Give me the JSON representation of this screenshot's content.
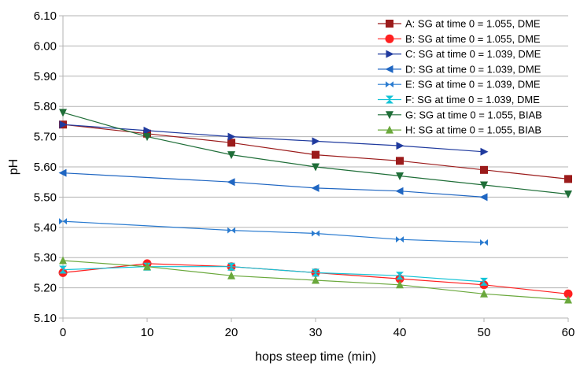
{
  "chart_data": {
    "type": "line",
    "title": "",
    "xlabel": "hops steep time (min)",
    "ylabel": "pH",
    "xlim": [
      0,
      60
    ],
    "ylim": [
      5.1,
      6.1
    ],
    "x_ticks": [
      "0",
      "10",
      "20",
      "30",
      "40",
      "50",
      "60"
    ],
    "y_ticks": [
      "5.10",
      "5.20",
      "5.30",
      "5.40",
      "5.50",
      "5.60",
      "5.70",
      "5.80",
      "5.90",
      "6.00",
      "6.10"
    ],
    "grid": "horizontal",
    "legend_position": "top-right",
    "series": [
      {
        "name": "A: SG at time 0 = 1.055, DME",
        "color": "#9b1b1b",
        "marker": "square",
        "x": [
          0,
          10,
          20,
          30,
          40,
          50,
          60
        ],
        "y": [
          5.74,
          5.71,
          5.68,
          5.64,
          5.62,
          5.59,
          5.56
        ]
      },
      {
        "name": "B: SG at time 0 = 1.055, DME",
        "color": "#ff2020",
        "marker": "circle",
        "x": [
          0,
          10,
          20,
          30,
          40,
          50,
          60
        ],
        "y": [
          5.25,
          5.28,
          5.27,
          5.25,
          5.23,
          5.21,
          5.18
        ]
      },
      {
        "name": "C: SG at time 0 = 1.039, DME",
        "color": "#1f3a9e",
        "marker": "triangle-right",
        "x": [
          0,
          10,
          20,
          30,
          40,
          50
        ],
        "y": [
          5.74,
          5.72,
          5.7,
          5.685,
          5.67,
          5.65
        ]
      },
      {
        "name": "D: SG at time 0 = 1.039, DME",
        "color": "#1f66c2",
        "marker": "triangle-left",
        "x": [
          0,
          20,
          30,
          40,
          50
        ],
        "y": [
          5.58,
          5.55,
          5.53,
          5.52,
          5.5
        ]
      },
      {
        "name": "E: SG at time 0 = 1.039, DME",
        "color": "#2a7bd0",
        "marker": "bowtie",
        "x": [
          0,
          20,
          30,
          40,
          50
        ],
        "y": [
          5.42,
          5.39,
          5.38,
          5.36,
          5.35
        ]
      },
      {
        "name": "F: SG at time 0 = 1.039, DME",
        "color": "#14c3d6",
        "marker": "hourglass",
        "x": [
          0,
          10,
          20,
          30,
          40,
          50
        ],
        "y": [
          5.26,
          5.27,
          5.27,
          5.25,
          5.24,
          5.22
        ]
      },
      {
        "name": "G: SG at time 0 = 1.055, BIAB",
        "color": "#1f6e38",
        "marker": "triangle-down",
        "x": [
          0,
          10,
          20,
          30,
          40,
          50,
          60
        ],
        "y": [
          5.78,
          5.7,
          5.64,
          5.6,
          5.57,
          5.54,
          5.51
        ]
      },
      {
        "name": "H: SG at time 0 = 1.055, BIAB",
        "color": "#6aa83c",
        "marker": "triangle-up",
        "x": [
          0,
          10,
          20,
          30,
          40,
          50,
          60
        ],
        "y": [
          5.29,
          5.27,
          5.24,
          5.225,
          5.21,
          5.18,
          5.16
        ]
      }
    ]
  }
}
